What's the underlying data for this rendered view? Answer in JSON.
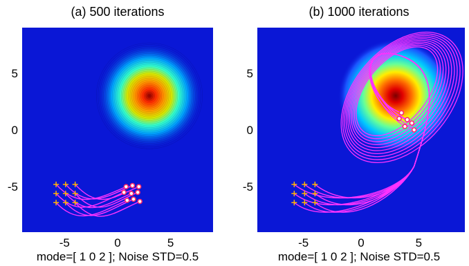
{
  "colors": {
    "background_blue": "#0a17d6",
    "trajectory": "#ff33ff",
    "start_marker": "#ffb400",
    "end_marker_fill": "#ffffff",
    "end_marker_edge": "#ff2a6a"
  },
  "chart_data": [
    {
      "type": "scatter",
      "title": "(a) 500 iterations",
      "caption": "mode=[ 1 0 2 ]; Noise STD=0.5",
      "xlim": [
        -9,
        9
      ],
      "ylim": [
        -9,
        9
      ],
      "xticks": [
        -5,
        0,
        5
      ],
      "yticks": [
        5,
        0,
        -5
      ],
      "xtick_labels": [
        "-5",
        "0",
        "5"
      ],
      "ytick_labels": [
        "5",
        "0",
        "-5"
      ],
      "field": {
        "style": "concentric rings",
        "center": [
          3,
          3
        ],
        "radius": 5
      },
      "start_points": [
        [
          -5.8,
          -4.8
        ],
        [
          -4.9,
          -4.8
        ],
        [
          -4.0,
          -4.8
        ],
        [
          -5.8,
          -5.6
        ],
        [
          -4.9,
          -5.6
        ],
        [
          -4.0,
          -5.6
        ],
        [
          -5.8,
          -6.4
        ],
        [
          -4.9,
          -6.4
        ],
        [
          -4.0,
          -6.4
        ]
      ],
      "end_points": [
        [
          0.8,
          -5.0
        ],
        [
          1.4,
          -4.9
        ],
        [
          2.0,
          -5.0
        ],
        [
          0.6,
          -5.5
        ],
        [
          1.3,
          -5.6
        ],
        [
          1.9,
          -5.5
        ],
        [
          0.9,
          -6.2
        ],
        [
          1.5,
          -6.1
        ],
        [
          2.1,
          -6.3
        ]
      ]
    },
    {
      "type": "scatter",
      "title": "(b) 1000 iterations",
      "caption": "mode=[ 1 0 2 ]; Noise STD=0.5",
      "xlim": [
        -9,
        9
      ],
      "ylim": [
        -9,
        9
      ],
      "xticks": [
        -5,
        0,
        5
      ],
      "yticks": [
        5,
        0,
        -5
      ],
      "xtick_labels": [
        "-5",
        "0",
        "5"
      ],
      "ytick_labels": [
        "5",
        "0",
        "-5"
      ],
      "field": {
        "style": "smooth peak",
        "center": [
          3,
          3
        ],
        "radius": 5
      },
      "start_points": [
        [
          -5.8,
          -4.8
        ],
        [
          -4.9,
          -4.8
        ],
        [
          -4.0,
          -4.8
        ],
        [
          -5.8,
          -5.6
        ],
        [
          -4.9,
          -5.6
        ],
        [
          -4.0,
          -5.6
        ],
        [
          -5.8,
          -6.4
        ],
        [
          -4.9,
          -6.4
        ],
        [
          -4.0,
          -6.4
        ]
      ],
      "end_points": [
        [
          3.5,
          1.5
        ],
        [
          4.0,
          0.9
        ],
        [
          4.4,
          0.6
        ],
        [
          3.8,
          0.3
        ],
        [
          4.6,
          0.0
        ],
        [
          3.3,
          1.0
        ]
      ]
    }
  ]
}
